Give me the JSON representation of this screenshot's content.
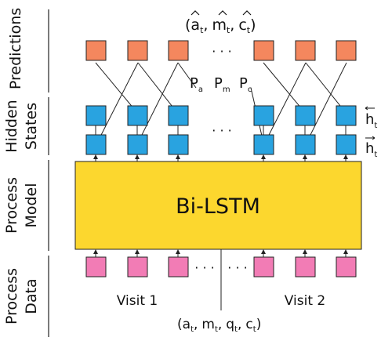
{
  "diagram": {
    "row_labels": {
      "predictions": "Predictions",
      "hidden_line1": "Hidden",
      "hidden_line2": "States",
      "process_model_line1": "Process",
      "process_model_line2": "Model",
      "process_data_line1": "Process",
      "process_data_line2": "Data"
    },
    "prediction_tuple": {
      "open": "(",
      "a": "a",
      "m": "m",
      "c": "c",
      "sub": "t",
      "sep": ",",
      "close": ")"
    },
    "prob_labels": [
      {
        "main": "P",
        "sub": "a"
      },
      {
        "main": "P",
        "sub": "m"
      },
      {
        "main": "P",
        "sub": "c"
      }
    ],
    "ellipsis": "· · ·",
    "hidden_labels": {
      "backward": {
        "main": "h",
        "sub": "t"
      },
      "forward": {
        "main": "h",
        "sub": "t"
      }
    },
    "model_box_label": "Bi-LSTM",
    "visits": [
      "Visit 1",
      "Visit 2"
    ],
    "input_tuple": {
      "open": "(",
      "a": "a",
      "m": "m",
      "q": "q",
      "c": "c",
      "sub": "t",
      "sep": ",",
      "close": ")"
    },
    "colors": {
      "prediction": "#f4875e",
      "hidden": "#29a3e0",
      "model": "#fcd72e",
      "data": "#f27cb5",
      "outline": "#222222"
    }
  }
}
